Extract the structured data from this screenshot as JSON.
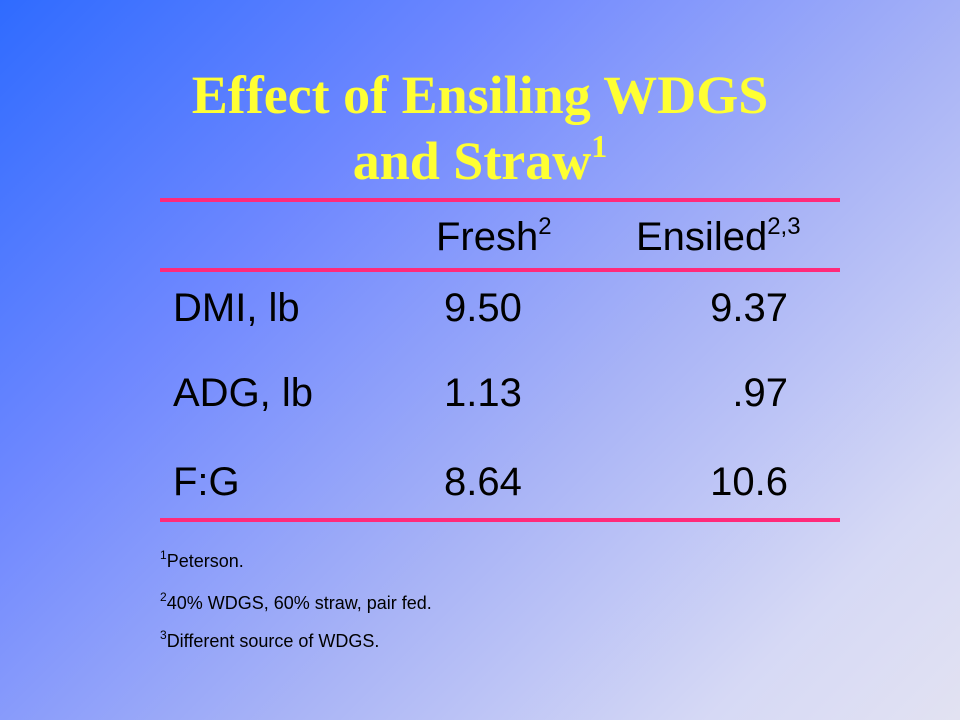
{
  "slide": {
    "title_line1": "Effect of Ensiling WDGS",
    "title_line2": "and Straw",
    "title_sup": "1"
  },
  "table": {
    "headers": [
      {
        "label": "Fresh",
        "sup": "2"
      },
      {
        "label": "Ensiled",
        "sup": "2,3"
      }
    ],
    "rows": [
      {
        "label": "DMI, lb",
        "fresh": "9.50",
        "ensiled": "9.37"
      },
      {
        "label": "ADG, lb",
        "fresh": "1.13",
        "ensiled": ".97"
      },
      {
        "label": "F:G",
        "fresh": "8.64",
        "ensiled": "10.6"
      }
    ]
  },
  "footnotes": [
    {
      "sup": "1",
      "text": "Peterson."
    },
    {
      "sup": "2",
      "text": "40% WDGS, 60% straw, pair fed."
    },
    {
      "sup": "3",
      "text": "Different source of WDGS."
    }
  ],
  "colors": {
    "title": "#ffff33",
    "rule": "#ff2a7a",
    "background_start": "#2f6bff",
    "background_end": "#e2e2f2"
  }
}
